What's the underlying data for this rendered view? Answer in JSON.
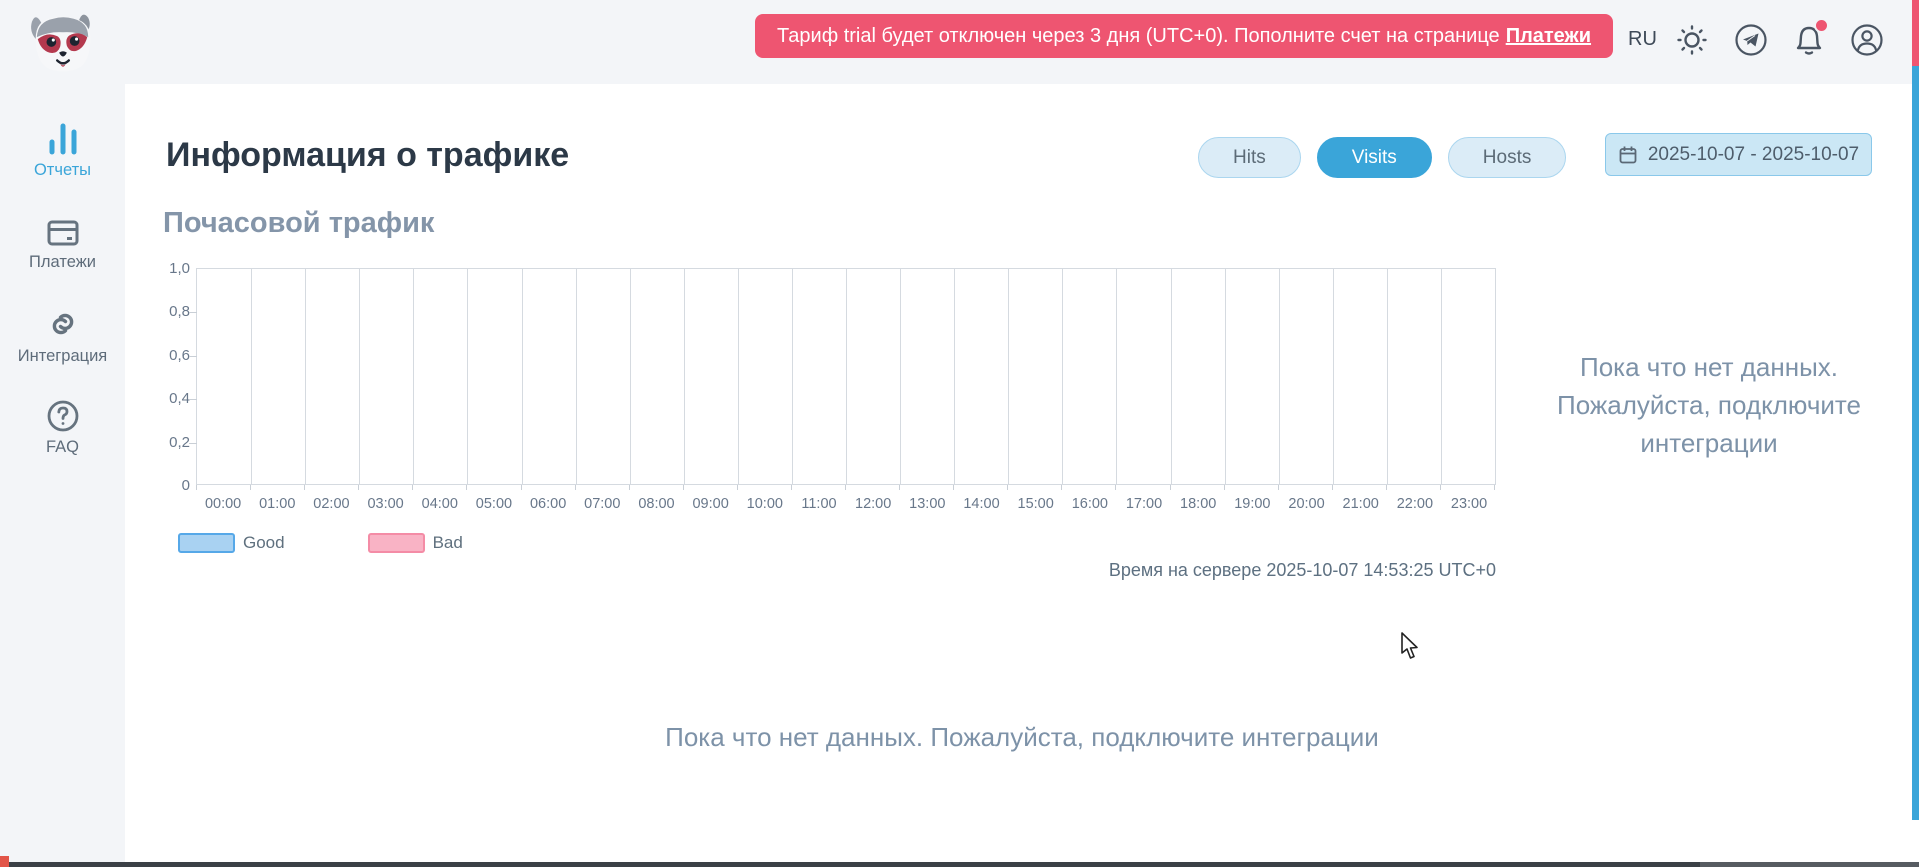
{
  "header": {
    "banner": {
      "text": "Тариф trial будет отключен через 3 дня (UTC+0). Пополните счет на странице",
      "link_label": "Платежи"
    },
    "language": "RU",
    "icons": [
      "theme-sun-icon",
      "telegram-icon",
      "notifications-bell-icon",
      "account-icon"
    ],
    "notification_dot_color": "#ee5571",
    "banner_color": "#ee5571"
  },
  "sidebar": {
    "items": [
      {
        "label": "Отчеты",
        "icon": "bar-chart-icon",
        "active": true
      },
      {
        "label": "Платежи",
        "icon": "credit-card-icon",
        "active": false
      },
      {
        "label": "Интеграция",
        "icon": "link-icon",
        "active": false
      },
      {
        "label": "FAQ",
        "icon": "question-circle-icon",
        "active": false
      }
    ],
    "active_color": "#3aa5d9"
  },
  "main": {
    "title": "Информация о трафике",
    "toggle_buttons": [
      {
        "label": "Hits",
        "active": false
      },
      {
        "label": "Visits",
        "active": true
      },
      {
        "label": "Hosts",
        "active": false
      }
    ],
    "date_range": "2025-10-07 - 2025-10-07",
    "section_title": "Почасовой трафик",
    "server_time": "Время на сервере 2025-10-07 14:53:25 UTC+0",
    "side_message_lines": [
      "Пока что нет данных.",
      "Пожалуйста, подключите",
      "интеграции"
    ],
    "bottom_message": "Пока что нет данных. Пожалуйста, подключите интеграции"
  },
  "chart_data": {
    "type": "bar",
    "title": "Почасовой трафик",
    "x_labels": [
      "00:00",
      "01:00",
      "02:00",
      "03:00",
      "04:00",
      "05:00",
      "06:00",
      "07:00",
      "08:00",
      "09:00",
      "10:00",
      "11:00",
      "12:00",
      "13:00",
      "14:00",
      "15:00",
      "16:00",
      "17:00",
      "18:00",
      "19:00",
      "20:00",
      "21:00",
      "22:00",
      "23:00"
    ],
    "y_ticks": [
      "1,0",
      "0,8",
      "0,6",
      "0,4",
      "0,2",
      "0"
    ],
    "ylim": [
      0,
      1
    ],
    "grid": true,
    "series": [
      {
        "name": "Good",
        "values": []
      },
      {
        "name": "Bad",
        "values": []
      }
    ],
    "legend": [
      {
        "label": "Good",
        "fill": "#a9d2f2",
        "border": "#56a8e8"
      },
      {
        "label": "Bad",
        "fill": "#f9b3c5",
        "border": "#f48ca6"
      }
    ],
    "legend_position": "bottom-left",
    "empty": true
  }
}
